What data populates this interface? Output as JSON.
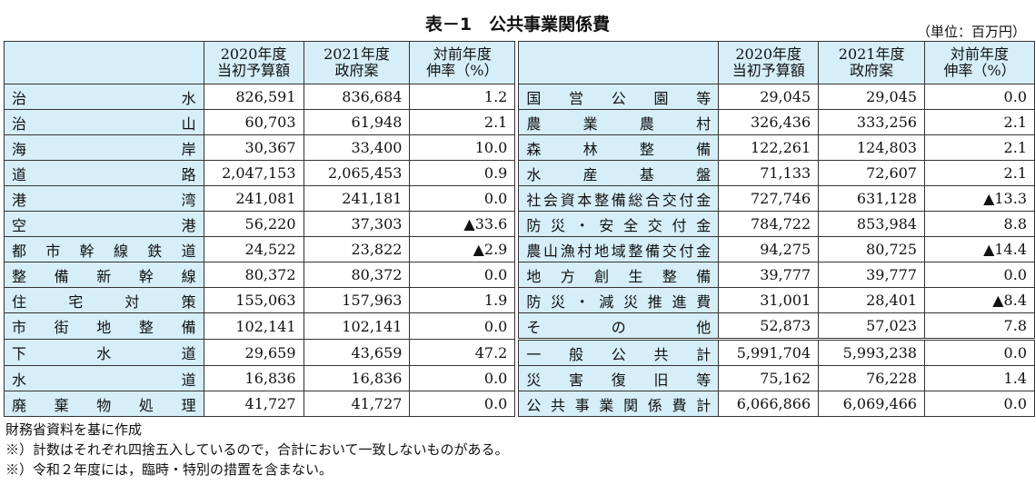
{
  "title": "表－1　公共事業関係費",
  "unit": "（単位：百万円）",
  "headers": {
    "col1": [
      "2020年度",
      "当初予算額"
    ],
    "col2": [
      "2021年度",
      "政府案"
    ],
    "col3": [
      "対前年度",
      "伸率（%）"
    ]
  },
  "left_rows": [
    {
      "label": "治水",
      "v2020": "826,591",
      "v2021": "836,684",
      "rate": "1.2"
    },
    {
      "label": "治山",
      "v2020": "60,703",
      "v2021": "61,948",
      "rate": "2.1"
    },
    {
      "label": "海岸",
      "v2020": "30,367",
      "v2021": "33,400",
      "rate": "10.0"
    },
    {
      "label": "道路",
      "v2020": "2,047,153",
      "v2021": "2,065,453",
      "rate": "0.9"
    },
    {
      "label": "港湾",
      "v2020": "241,081",
      "v2021": "241,181",
      "rate": "0.0"
    },
    {
      "label": "空港",
      "v2020": "56,220",
      "v2021": "37,303",
      "rate": "▲33.6"
    },
    {
      "label": "都市幹線鉄道",
      "v2020": "24,522",
      "v2021": "23,822",
      "rate": "▲2.9"
    },
    {
      "label": "整備新幹線",
      "v2020": "80,372",
      "v2021": "80,372",
      "rate": "0.0"
    },
    {
      "label": "住宅対策",
      "v2020": "155,063",
      "v2021": "157,963",
      "rate": "1.9"
    },
    {
      "label": "市街地整備",
      "v2020": "102,141",
      "v2021": "102,141",
      "rate": "0.0"
    },
    {
      "label": "下水道",
      "v2020": "29,659",
      "v2021": "43,659",
      "rate": "47.2"
    },
    {
      "label": "水道",
      "v2020": "16,836",
      "v2021": "16,836",
      "rate": "0.0"
    },
    {
      "label": "廃棄物処理",
      "v2020": "41,727",
      "v2021": "41,727",
      "rate": "0.0"
    }
  ],
  "right_rows": [
    {
      "label": "国営公園等",
      "v2020": "29,045",
      "v2021": "29,045",
      "rate": "0.0"
    },
    {
      "label": "農業農村",
      "v2020": "326,436",
      "v2021": "333,256",
      "rate": "2.1"
    },
    {
      "label": "森林整備",
      "v2020": "122,261",
      "v2021": "124,803",
      "rate": "2.1"
    },
    {
      "label": "水産基盤",
      "v2020": "71,133",
      "v2021": "72,607",
      "rate": "2.1"
    },
    {
      "label": "社会資本整備総合交付金",
      "v2020": "727,746",
      "v2021": "631,128",
      "rate": "▲13.3"
    },
    {
      "label": "防災・安全交付金",
      "v2020": "784,722",
      "v2021": "853,984",
      "rate": "8.8"
    },
    {
      "label": "農山漁村地域整備交付金",
      "v2020": "94,275",
      "v2021": "80,725",
      "rate": "▲14.4"
    },
    {
      "label": "地方創生整備",
      "v2020": "39,777",
      "v2021": "39,777",
      "rate": "0.0"
    },
    {
      "label": "防災・減災推進費",
      "v2020": "31,001",
      "v2021": "28,401",
      "rate": "▲8.4"
    },
    {
      "label": "その他",
      "v2020": "52,873",
      "v2021": "57,023",
      "rate": "7.8"
    },
    {
      "label": "一般公共計",
      "v2020": "5,991,704",
      "v2021": "5,993,238",
      "rate": "0.0"
    },
    {
      "label": "災害復旧等",
      "v2020": "75,162",
      "v2021": "76,228",
      "rate": "1.4"
    },
    {
      "label": "公共事業関係費計",
      "v2020": "6,066,866",
      "v2021": "6,069,466",
      "rate": "0.0"
    }
  ],
  "notes": [
    "財務省資料を基に作成",
    "※）計数はそれぞれ四捨五入しているので，合計において一致しないものがある。",
    "※）令和２年度には，臨時・特別の措置を含まない。"
  ]
}
